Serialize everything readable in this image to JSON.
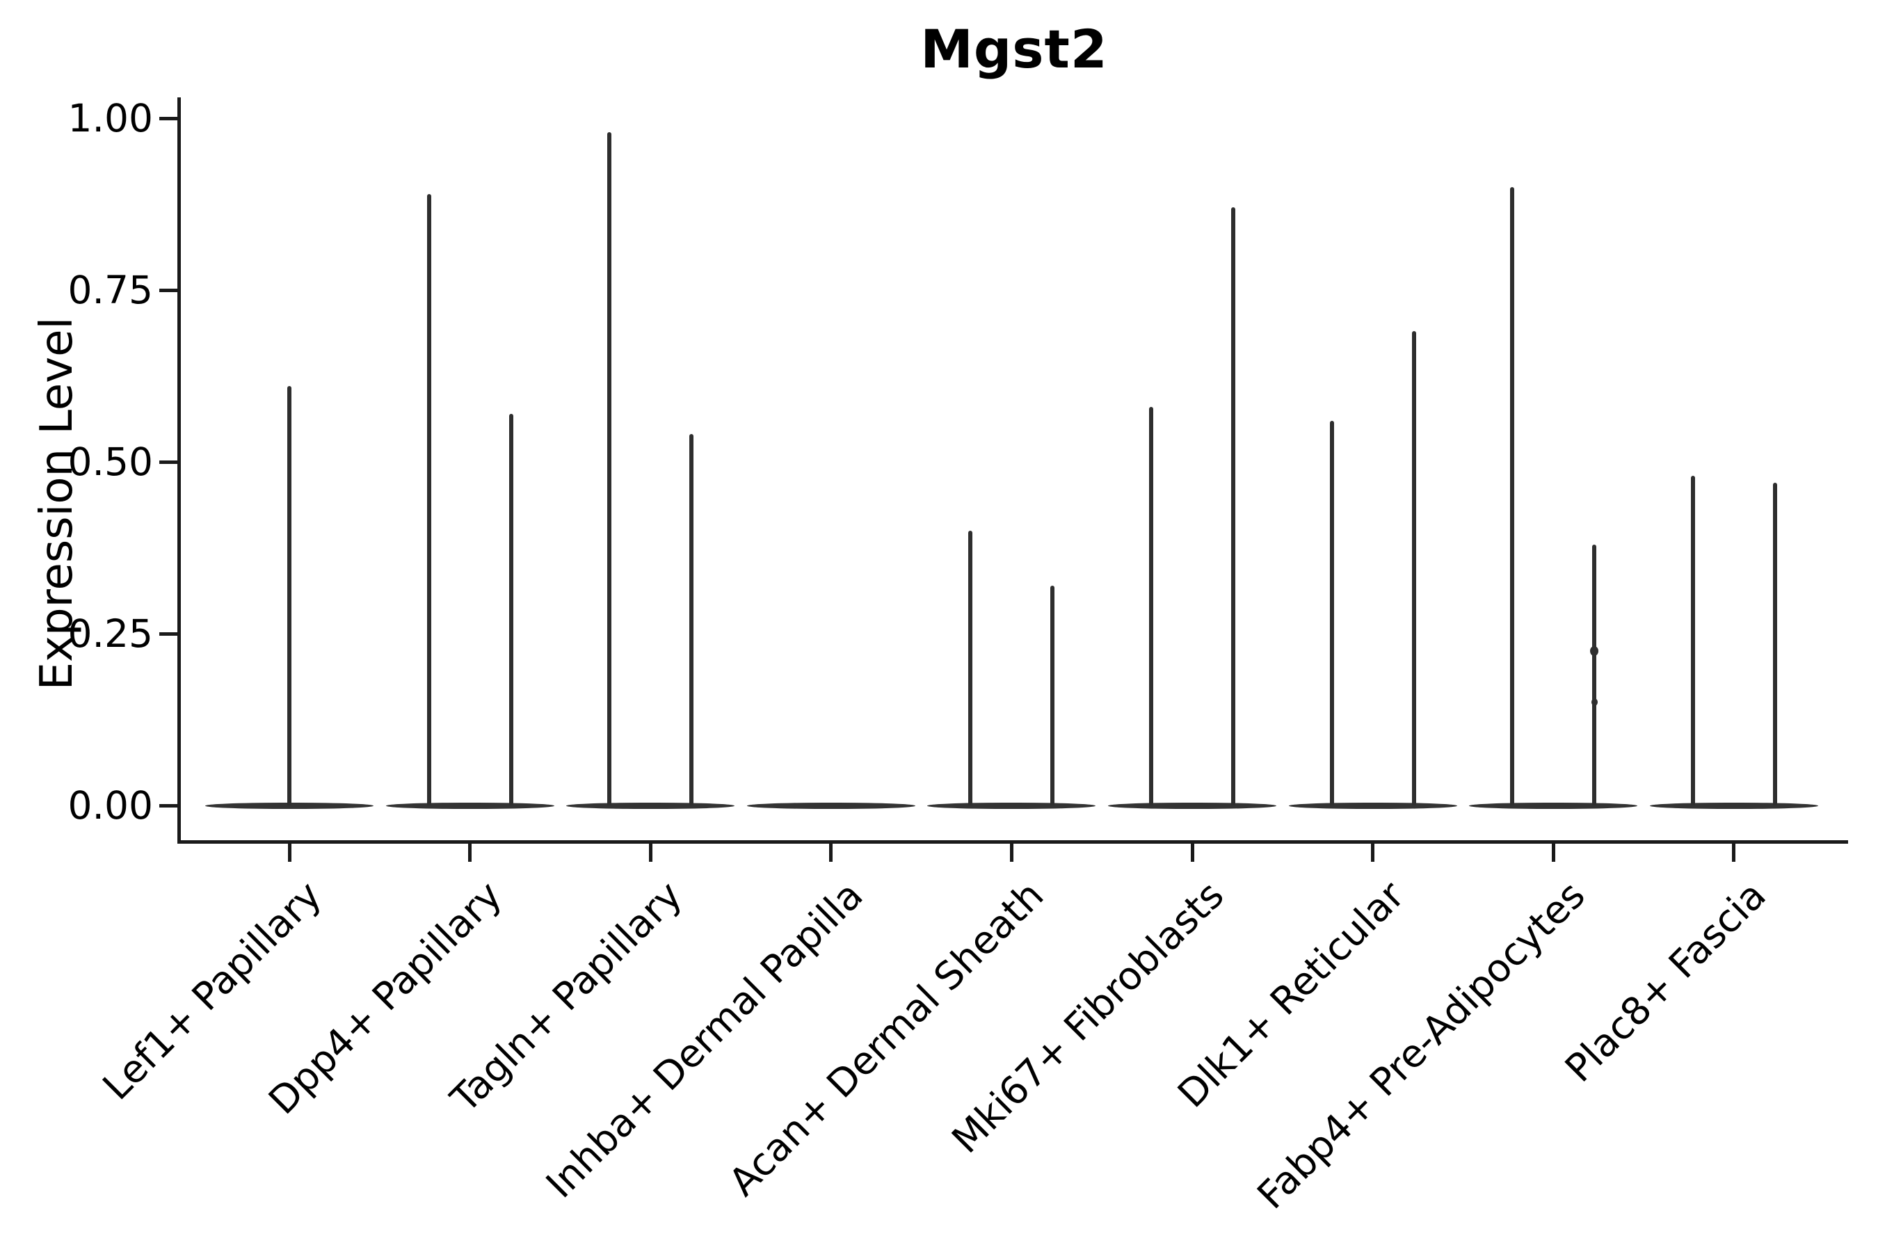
{
  "title": "Mgst2",
  "ylabel": "Expression Level",
  "colors": {
    "ink": "#2e2e2e",
    "base_ink": "#333333",
    "axis": "#1a1a1a",
    "text": "#000000",
    "background": "#ffffff"
  },
  "chart_data": {
    "type": "violin",
    "title": "Mgst2",
    "xlabel": "",
    "ylabel": "Expression Level",
    "ylim": [
      0,
      1.03
    ],
    "yticks": [
      0,
      0.25,
      0.5,
      0.75,
      1.0
    ],
    "ytick_labels": [
      "0.00",
      "0.25",
      "0.50",
      "0.75",
      "1.00"
    ],
    "grid": false,
    "legend": false,
    "categories": [
      "Lef1+ Papillary",
      "Dpp4+ Papillary",
      "Tagln+ Papillary",
      "Inhba+ Dermal Papilla",
      "Acan+ Dermal Sheath",
      "Mki67+ Fibroblasts",
      "Dlk1+ Reticular",
      "Fabp4+ Pre-Adipocytes",
      "Plac8+ Fascia"
    ],
    "description": "Violin plot of Mgst2 expression per fibroblast subtype; nearly all density lies at expression 0 (wide flat bases) with thin spikes reaching each violin's maximum. Categories with two sub-violins contain two dodged violins; Lef1+ Papillary has a single full-width violin; Inhba+ Dermal Papilla is entirely at 0.",
    "violins": [
      {
        "category": "Lef1+ Papillary",
        "max_values": [
          0.61
        ]
      },
      {
        "category": "Dpp4+ Papillary",
        "max_values": [
          0.89,
          0.57
        ]
      },
      {
        "category": "Tagln+ Papillary",
        "max_values": [
          0.98,
          0.54
        ]
      },
      {
        "category": "Inhba+ Dermal Papilla",
        "max_values": []
      },
      {
        "category": "Acan+ Dermal Sheath",
        "max_values": [
          0.4,
          0.32
        ]
      },
      {
        "category": "Mki67+ Fibroblasts",
        "max_values": [
          0.58,
          0.87
        ]
      },
      {
        "category": "Dlk1+ Reticular",
        "max_values": [
          0.56,
          0.69
        ]
      },
      {
        "category": "Fabp4+ Pre-Adipocytes",
        "max_values": [
          0.9,
          0.38
        ],
        "knots": [
          {
            "violin": 1,
            "values": [
              0.225,
              0.15
            ]
          }
        ]
      },
      {
        "category": "Plac8+ Fascia",
        "max_values": [
          0.48,
          0.47
        ]
      }
    ]
  }
}
